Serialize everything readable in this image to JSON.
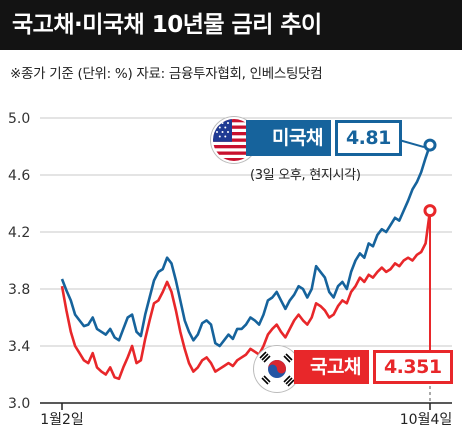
{
  "header": {
    "title": "국고채·미국채 10년물 금리 추이"
  },
  "note": "※종가 기준 (단위: %) 자료: 금융투자협회, 인베스팅닷컴",
  "us_label": {
    "name": "미국채",
    "value": "4.81",
    "note": "(3일 오후, 현지시각)"
  },
  "kr_label": {
    "name": "국고채",
    "value": "4.351"
  },
  "icons": {
    "us_flag": "us-flag-icon",
    "kr_flag": "korea-flag-icon"
  },
  "colors": {
    "us": "#16639c",
    "kr": "#e8272a",
    "header_bg": "#131313"
  },
  "chart_data": {
    "type": "line",
    "x_tick_labels": [
      "1월2일",
      "10월4일"
    ],
    "ylim": [
      3.0,
      5.0
    ],
    "y_ticks": [
      "3.0",
      "3.4",
      "3.8",
      "4.2",
      "4.6",
      "5.0"
    ],
    "grid": true,
    "series": [
      {
        "name": "미국채",
        "color": "#16639c",
        "values": [
          3.87,
          3.79,
          3.72,
          3.62,
          3.58,
          3.54,
          3.55,
          3.6,
          3.52,
          3.5,
          3.48,
          3.52,
          3.46,
          3.44,
          3.52,
          3.6,
          3.62,
          3.5,
          3.47,
          3.62,
          3.74,
          3.86,
          3.92,
          3.94,
          4.02,
          3.98,
          3.86,
          3.72,
          3.58,
          3.5,
          3.44,
          3.48,
          3.56,
          3.58,
          3.55,
          3.42,
          3.4,
          3.44,
          3.48,
          3.45,
          3.52,
          3.52,
          3.55,
          3.6,
          3.58,
          3.55,
          3.62,
          3.72,
          3.74,
          3.78,
          3.72,
          3.66,
          3.72,
          3.76,
          3.82,
          3.8,
          3.74,
          3.8,
          3.96,
          3.92,
          3.88,
          3.78,
          3.74,
          3.82,
          3.85,
          3.8,
          3.92,
          4.0,
          4.05,
          4.02,
          4.12,
          4.1,
          4.18,
          4.22,
          4.2,
          4.25,
          4.3,
          4.28,
          4.35,
          4.42,
          4.5,
          4.55,
          4.62,
          4.72,
          4.81
        ]
      },
      {
        "name": "국고채",
        "color": "#e8272a",
        "values": [
          3.82,
          3.65,
          3.5,
          3.4,
          3.35,
          3.3,
          3.28,
          3.35,
          3.25,
          3.22,
          3.2,
          3.25,
          3.18,
          3.17,
          3.25,
          3.32,
          3.4,
          3.28,
          3.3,
          3.45,
          3.58,
          3.7,
          3.72,
          3.78,
          3.85,
          3.78,
          3.65,
          3.5,
          3.38,
          3.28,
          3.22,
          3.25,
          3.3,
          3.32,
          3.28,
          3.22,
          3.24,
          3.26,
          3.28,
          3.26,
          3.3,
          3.32,
          3.34,
          3.38,
          3.36,
          3.34,
          3.4,
          3.48,
          3.52,
          3.55,
          3.5,
          3.46,
          3.52,
          3.58,
          3.62,
          3.58,
          3.55,
          3.6,
          3.7,
          3.68,
          3.65,
          3.6,
          3.62,
          3.68,
          3.72,
          3.7,
          3.78,
          3.82,
          3.88,
          3.85,
          3.9,
          3.88,
          3.92,
          3.95,
          3.92,
          3.94,
          3.98,
          3.96,
          4.0,
          4.02,
          4.0,
          4.04,
          4.06,
          4.12,
          4.35
        ]
      }
    ]
  }
}
